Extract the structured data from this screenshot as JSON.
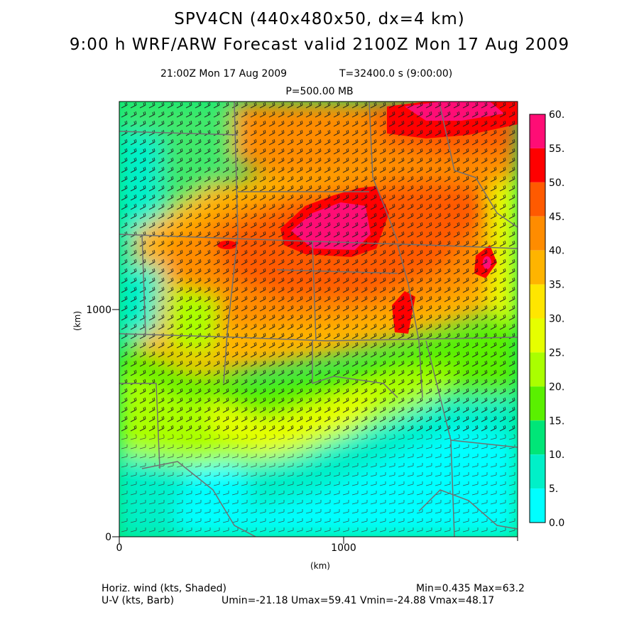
{
  "header": {
    "title_line1": "SPV4CN (440x480x50, dx=4 km)",
    "title_line2": "9:00 h WRF/ARW Forecast valid 2100Z Mon 17 Aug 2009",
    "valid_time": "21:00Z Mon 17 Aug 2009",
    "model_time": "T=32400.0 s (9:00:00)",
    "level": "P=500.00 MB"
  },
  "axes": {
    "x_unit": "(km)",
    "y_unit": "(km)",
    "x_ticks": [
      "0",
      "1000"
    ],
    "y_ticks": [
      "0",
      "1000"
    ]
  },
  "colorbar": {
    "labels": [
      "60.",
      "55.",
      "50.",
      "45.",
      "40.",
      "35.",
      "30.",
      "25.",
      "20.",
      "15.",
      "10.",
      "5.",
      "0.0"
    ],
    "colors": [
      "#ff0d75",
      "#ff0000",
      "#ff5a00",
      "#ff8c00",
      "#ffb400",
      "#ffe600",
      "#e6ff00",
      "#aaff00",
      "#5af000",
      "#00e678",
      "#00f0c8",
      "#00ffff"
    ]
  },
  "footer": {
    "field1": "Horiz. wind (kts, Shaded)",
    "field2": "U-V (kts, Barb)",
    "minmax": "Min=0.435 Max=63.2",
    "uvstats": "Umin=-21.18 Umax=59.41 Vmin=-24.88 Vmax=48.17"
  }
}
